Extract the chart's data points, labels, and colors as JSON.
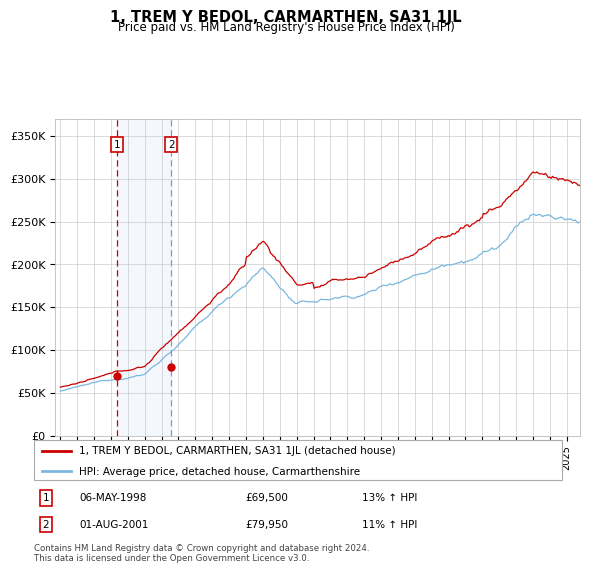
{
  "title": "1, TREM Y BEDOL, CARMARTHEN, SA31 1JL",
  "subtitle": "Price paid vs. HM Land Registry's House Price Index (HPI)",
  "ylabel_ticks": [
    "£0",
    "£50K",
    "£100K",
    "£150K",
    "£200K",
    "£250K",
    "£300K",
    "£350K"
  ],
  "ytick_vals": [
    0,
    50000,
    100000,
    150000,
    200000,
    250000,
    300000,
    350000
  ],
  "ylim": [
    0,
    370000
  ],
  "hpi_color": "#7ab8e0",
  "price_color": "#cc0000",
  "transaction1_date": "06-MAY-1998",
  "transaction1_price": "£69,500",
  "transaction1_label": "13% ↑ HPI",
  "transaction1_year": 1998.37,
  "transaction1_value": 69500,
  "transaction2_date": "01-AUG-2001",
  "transaction2_price": "£79,950",
  "transaction2_label": "11% ↑ HPI",
  "transaction2_year": 2001.58,
  "transaction2_value": 79950,
  "legend_property": "1, TREM Y BEDOL, CARMARTHEN, SA31 1JL (detached house)",
  "legend_hpi": "HPI: Average price, detached house, Carmarthenshire",
  "footer": "Contains HM Land Registry data © Crown copyright and database right 2024.\nThis data is licensed under the Open Government Licence v3.0.",
  "grid_color": "#cccccc",
  "xlim_start": 1994.7,
  "xlim_end": 2025.8
}
